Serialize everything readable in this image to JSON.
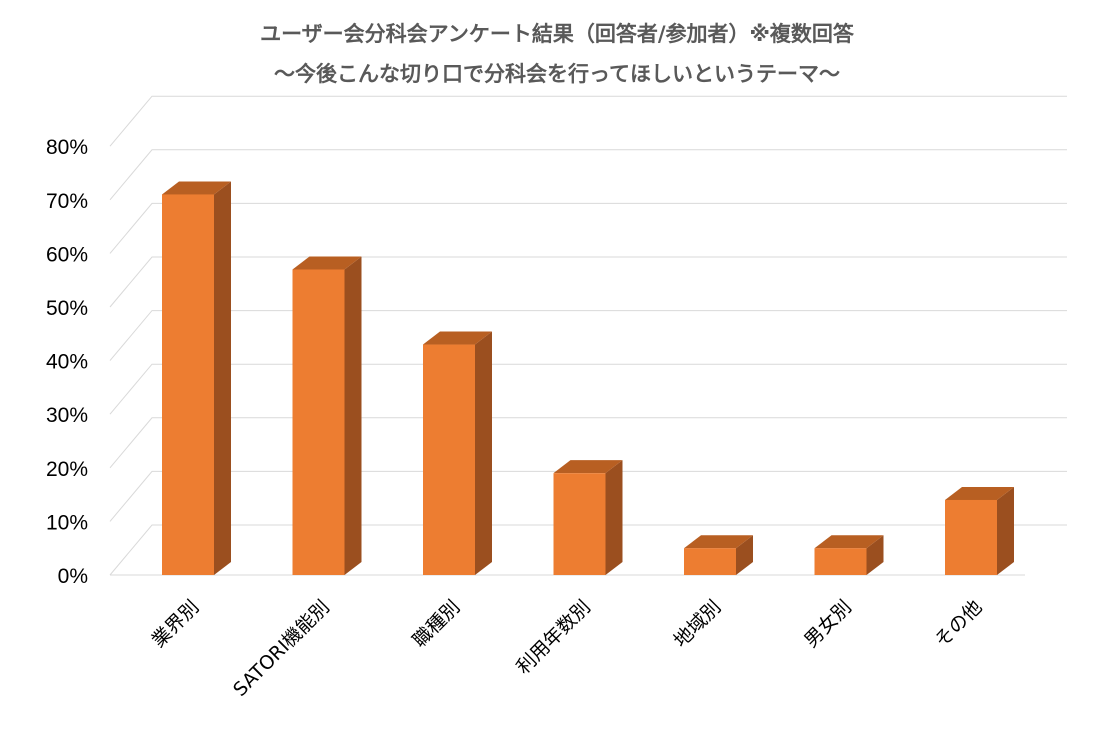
{
  "chart_data": {
    "type": "bar",
    "title_lines": [
      "ユーザー会分科会アンケート結果（回答者/参加者）※複数回答",
      "～今後こんな切り口で分科会を行ってほしいというテーマ～"
    ],
    "categories": [
      "業界別",
      "SATORI機能別",
      "職種別",
      "利用年数別",
      "地域別",
      "男女別",
      "その他"
    ],
    "values": [
      71,
      57,
      43,
      19,
      5,
      5,
      14
    ],
    "value_unit": "%",
    "ylim": [
      0,
      80
    ],
    "yticks": [
      "0%",
      "10%",
      "20%",
      "30%",
      "40%",
      "50%",
      "60%",
      "70%",
      "80%"
    ],
    "ytick_step": 10,
    "grid": true,
    "style": "3d-column",
    "colors": {
      "bar_front": "#ED7D31",
      "bar_side": "#9B4F1F",
      "bar_top": "#B85F22",
      "grid": "#D9D9D9",
      "title": "#595959"
    }
  }
}
